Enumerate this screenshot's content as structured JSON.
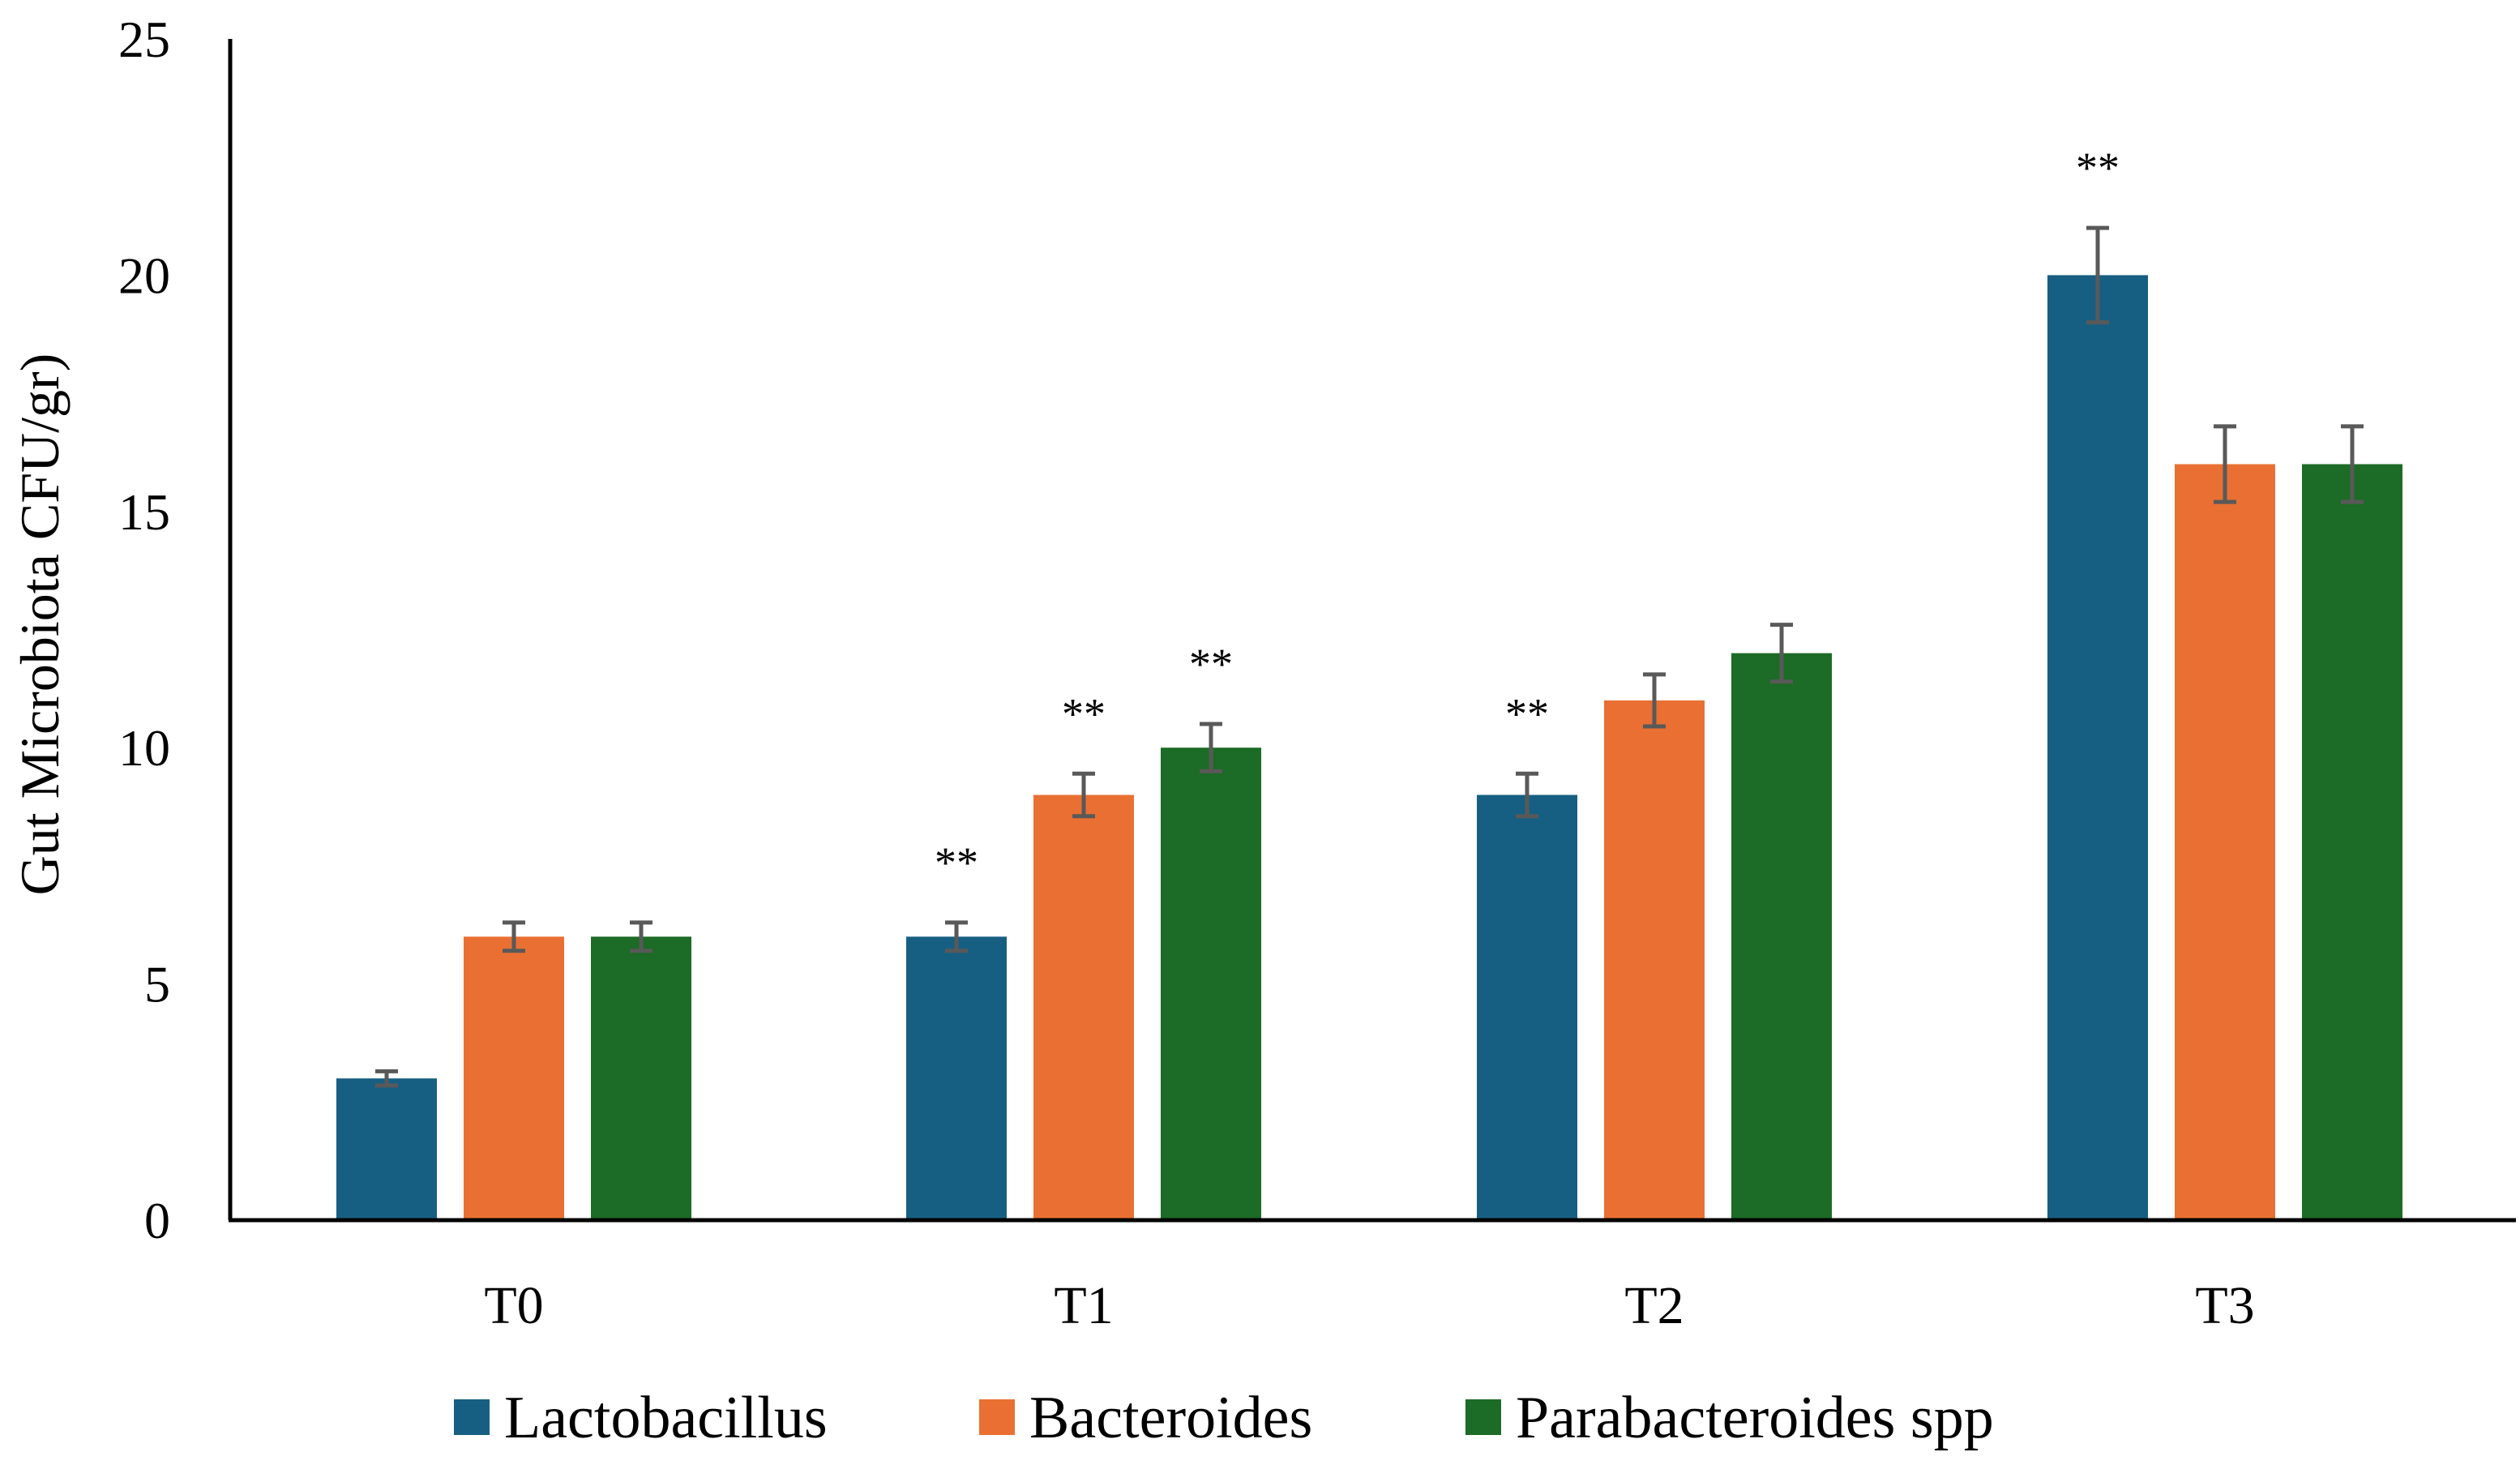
{
  "chart_data": {
    "type": "bar",
    "title": "",
    "xlabel": "",
    "ylabel": "Gut Microbiota CFU/gr)",
    "ylim": [
      0,
      25
    ],
    "yticks": [
      0,
      5,
      10,
      15,
      20,
      25
    ],
    "grid": false,
    "legend_position": "bottom",
    "categories": [
      "T0",
      "T1",
      "T2",
      "T3"
    ],
    "series": [
      {
        "name": "Lactobacillus",
        "color": "#175F82",
        "values": [
          3,
          6,
          9,
          20
        ],
        "errors": [
          0.15,
          0.3,
          0.45,
          1.0
        ],
        "significance": [
          "",
          "**",
          "**",
          "**"
        ]
      },
      {
        "name": "Bacteroides",
        "color": "#E97032",
        "values": [
          6,
          9,
          11,
          16
        ],
        "errors": [
          0.3,
          0.45,
          0.55,
          0.8
        ],
        "significance": [
          "",
          "**",
          "",
          ""
        ]
      },
      {
        "name": "Parabacteroides spp",
        "color": "#1C6B26",
        "values": [
          6,
          10,
          12,
          16
        ],
        "errors": [
          0.3,
          0.5,
          0.6,
          0.8
        ],
        "significance": [
          "",
          "**",
          "",
          ""
        ]
      }
    ],
    "error_bar_color": "#595959"
  }
}
